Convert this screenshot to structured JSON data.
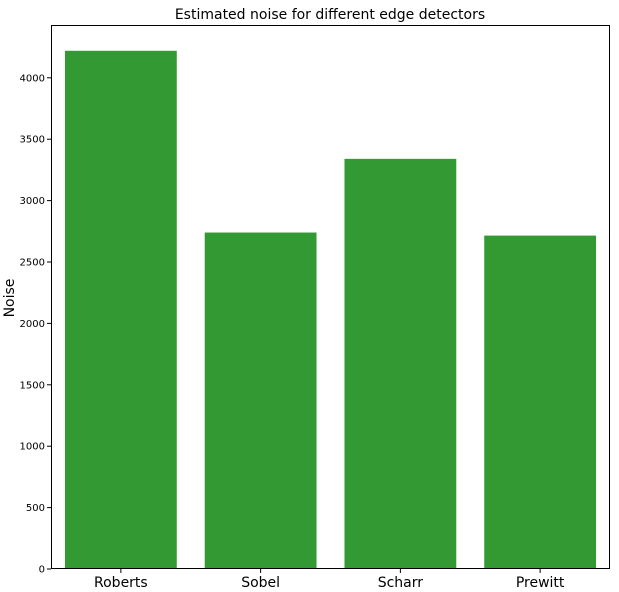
{
  "chart_data": {
    "type": "bar",
    "title": "Estimated noise for different edge detectors",
    "xlabel": "",
    "ylabel": "Noise",
    "categories": [
      "Roberts",
      "Sobel",
      "Scharr",
      "Prewitt"
    ],
    "values": [
      4220,
      2740,
      3340,
      2715
    ],
    "ylim": [
      0,
      4430
    ],
    "yticks": [
      0,
      500,
      1000,
      1500,
      2000,
      2500,
      3000,
      3500,
      4000
    ],
    "ytick_labels": [
      "0",
      "500",
      "1000",
      "1500",
      "2000",
      "2500",
      "3000",
      "3500",
      "4000"
    ],
    "grid": false,
    "legend": "none",
    "bar_color": "#339933"
  }
}
